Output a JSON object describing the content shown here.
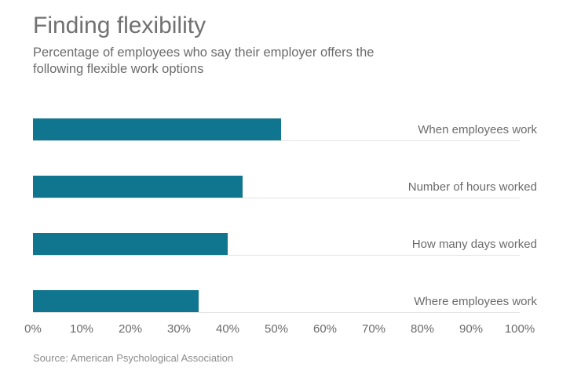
{
  "header": {
    "title": "Finding flexibility",
    "subtitle_lines": [
      "Percentage of employees who say their employer offers the",
      "following flexible work options"
    ]
  },
  "chart_data": {
    "type": "bar",
    "orientation": "horizontal",
    "title": "Finding flexibility",
    "subtitle": "Percentage of employees who say their employer offers the following flexible work options",
    "categories": [
      "When employees work",
      "Number of hours worked",
      "How many days worked",
      "Where employees work"
    ],
    "values": [
      51,
      43,
      40,
      34
    ],
    "xlim": [
      0,
      100
    ],
    "x_ticks": [
      "0%",
      "10%",
      "20%",
      "30%",
      "40%",
      "50%",
      "60%",
      "70%",
      "80%",
      "90%",
      "100%"
    ],
    "bar_color": "#10758e",
    "gridline_color": "#e3e3e3",
    "legend": "none"
  },
  "source": {
    "text": "Source: American Psychological Association"
  }
}
